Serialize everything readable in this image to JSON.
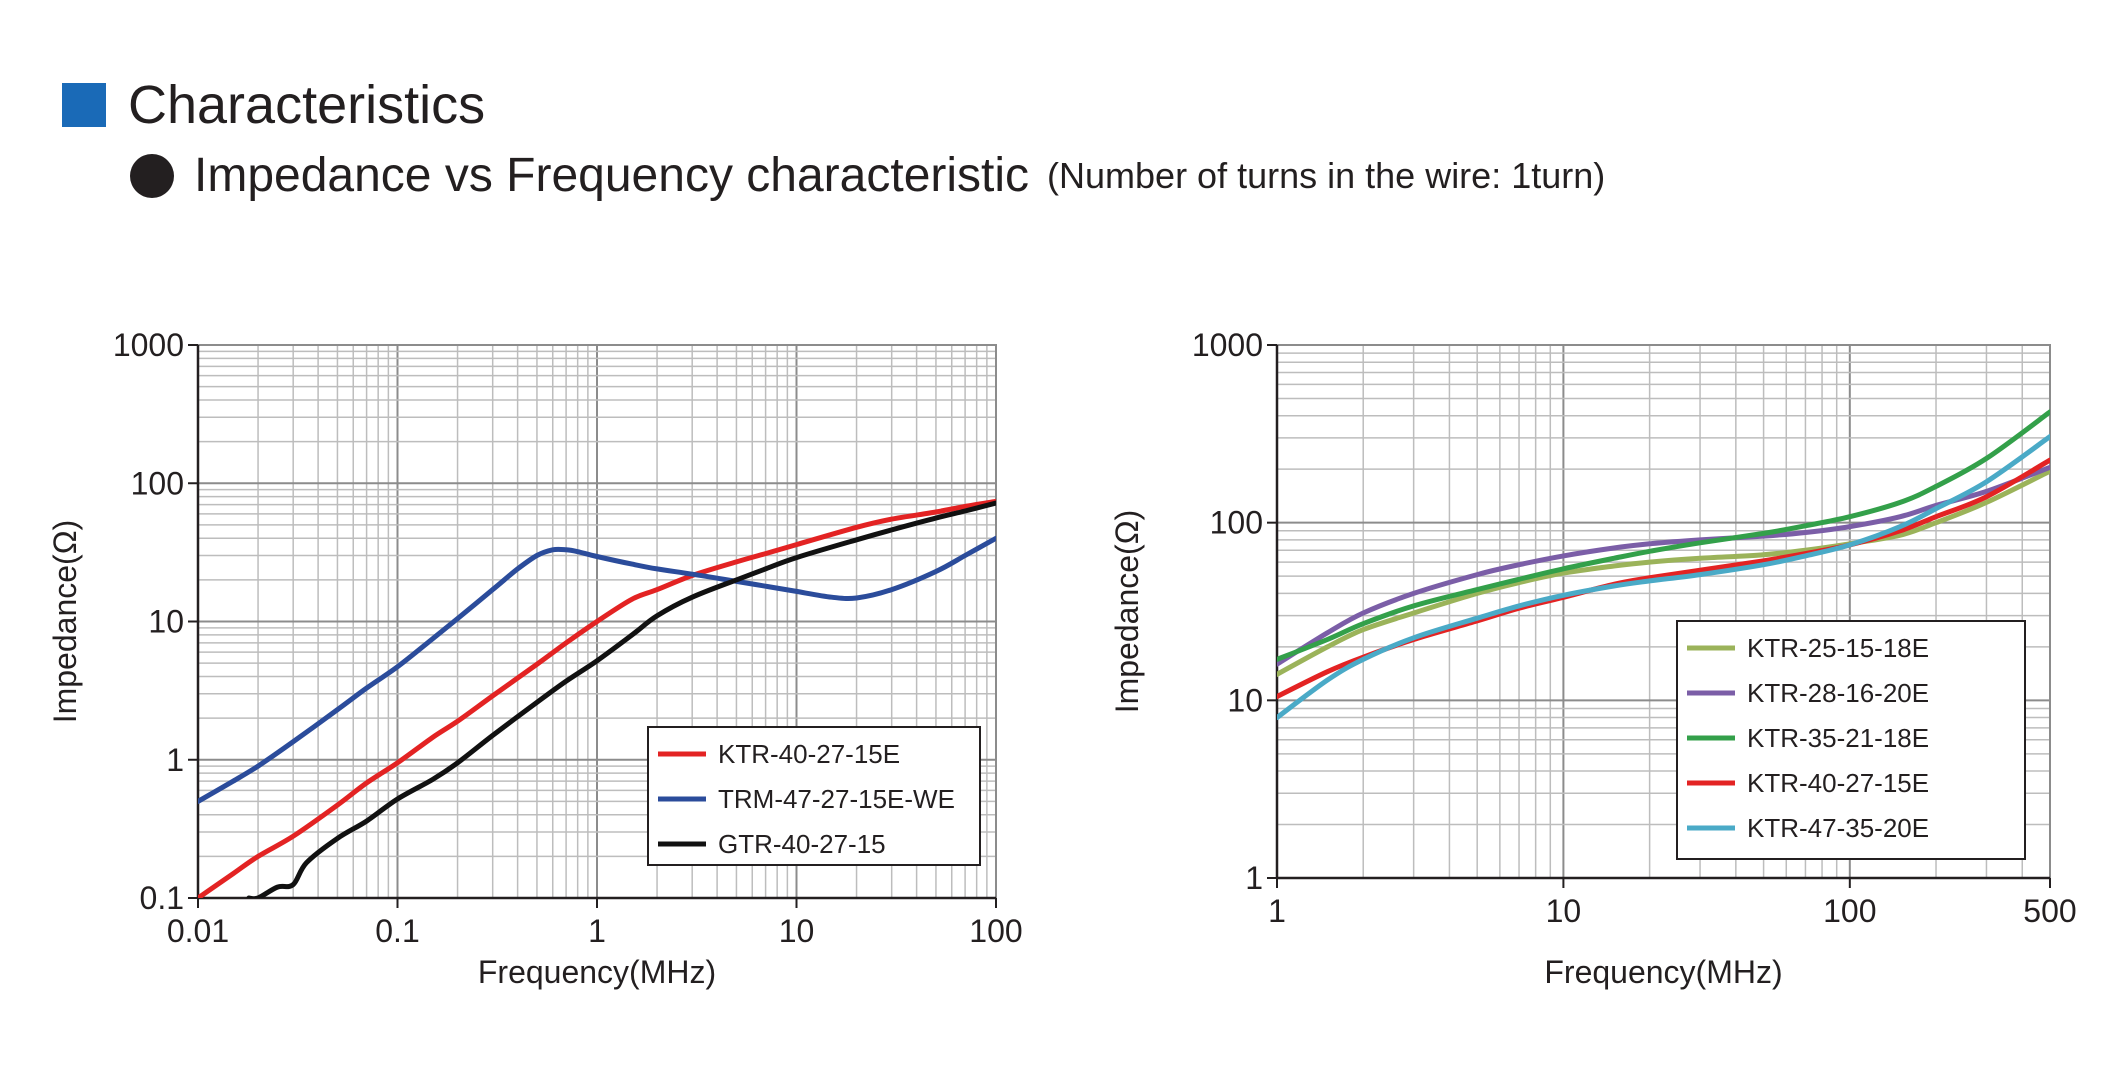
{
  "header": {
    "title": "Characteristics",
    "subtitle": "Impedance vs Frequency characteristic",
    "subtitle_note": "(Number of turns in the wire: 1turn)"
  },
  "colors": {
    "header_square": "#1a6ab7",
    "bullet": "#231f20"
  },
  "chart_data": [
    {
      "type": "line",
      "xlabel": "Frequency(MHz)",
      "ylabel": "Impedance(Ω)",
      "xscale": "log",
      "yscale": "log",
      "xlim": [
        0.01,
        100
      ],
      "ylim": [
        0.1,
        1000
      ],
      "xticks": [
        0.01,
        0.1,
        1,
        10,
        100
      ],
      "xtick_labels": [
        "0.01",
        "0.1",
        "1",
        "10",
        "100"
      ],
      "yticks": [
        0.1,
        1,
        10,
        100,
        1000
      ],
      "ytick_labels": [
        "0.1",
        "1",
        "10",
        "100",
        "1000"
      ],
      "grid": true,
      "legend_position": "lower-right",
      "series": [
        {
          "name": "KTR-40-27-15E",
          "color": "#e32323",
          "x": [
            0.01,
            0.015,
            0.02,
            0.03,
            0.05,
            0.07,
            0.1,
            0.15,
            0.2,
            0.3,
            0.5,
            0.7,
            1,
            1.5,
            2,
            3,
            5,
            7,
            10,
            20,
            30,
            50,
            70,
            100
          ],
          "y": [
            0.1,
            0.15,
            0.2,
            0.28,
            0.47,
            0.68,
            0.95,
            1.45,
            1.9,
            2.9,
            4.9,
            7.0,
            10.0,
            14.5,
            17.0,
            21.5,
            27.0,
            31.0,
            36.0,
            48.0,
            55.0,
            62.0,
            68.0,
            74.0
          ]
        },
        {
          "name": "TRM-47-27-15E-WE",
          "color": "#2b4c9b",
          "x": [
            0.01,
            0.015,
            0.02,
            0.03,
            0.05,
            0.07,
            0.1,
            0.15,
            0.2,
            0.3,
            0.4,
            0.5,
            0.6,
            0.7,
            0.8,
            1,
            1.5,
            2,
            3,
            5,
            7,
            10,
            15,
            20,
            30,
            50,
            70,
            100
          ],
          "y": [
            0.5,
            0.7,
            0.9,
            1.35,
            2.3,
            3.3,
            4.7,
            7.5,
            10.5,
            17.0,
            24.0,
            30.0,
            33.0,
            33.0,
            32.0,
            29.5,
            26.0,
            24.0,
            22.0,
            19.5,
            18.0,
            16.5,
            15.0,
            14.8,
            17.0,
            23.0,
            30.0,
            40.0
          ]
        },
        {
          "name": "GTR-40-27-15",
          "color": "#111111",
          "x": [
            0.018,
            0.02,
            0.025,
            0.03,
            0.035,
            0.05,
            0.07,
            0.1,
            0.15,
            0.2,
            0.3,
            0.5,
            0.7,
            1,
            1.5,
            2,
            3,
            5,
            7,
            10,
            20,
            30,
            50,
            70,
            100
          ],
          "y": [
            0.1,
            0.1,
            0.12,
            0.125,
            0.18,
            0.27,
            0.36,
            0.52,
            0.72,
            0.95,
            1.5,
            2.6,
            3.7,
            5.2,
            8.0,
            11.0,
            15.0,
            20.0,
            24.0,
            29.0,
            39.0,
            46.0,
            56.0,
            63.0,
            72.0
          ]
        }
      ]
    },
    {
      "type": "line",
      "xlabel": "Frequency(MHz)",
      "ylabel": "Impedance(Ω)",
      "xscale": "log",
      "yscale": "log",
      "xlim": [
        1,
        500
      ],
      "ylim": [
        1,
        1000
      ],
      "xticks": [
        1,
        10,
        100,
        500
      ],
      "xtick_labels": [
        "1",
        "10",
        "100",
        "500"
      ],
      "yticks": [
        1,
        10,
        100,
        1000
      ],
      "ytick_labels": [
        "1",
        "10",
        "100",
        "1000"
      ],
      "grid": true,
      "legend_position": "lower-right",
      "series": [
        {
          "name": "KTR-25-15-18E",
          "color": "#9bb35a",
          "x": [
            1,
            1.5,
            2,
            3,
            5,
            7,
            10,
            15,
            20,
            30,
            50,
            70,
            100,
            150,
            200,
            300,
            500
          ],
          "y": [
            14.0,
            20.0,
            25.0,
            31.0,
            40.0,
            46.0,
            52.0,
            57.0,
            60.0,
            63.0,
            66.0,
            70.0,
            76.0,
            85.0,
            100.0,
            130.0,
            195.0
          ]
        },
        {
          "name": "KTR-28-16-20E",
          "color": "#7b5ea7",
          "x": [
            1,
            1.5,
            2,
            3,
            5,
            7,
            10,
            15,
            20,
            30,
            50,
            70,
            100,
            150,
            200,
            300,
            500
          ],
          "y": [
            16.0,
            24.0,
            31.0,
            40.0,
            51.0,
            58.0,
            65.0,
            72.0,
            76.0,
            80.0,
            84.0,
            88.0,
            95.0,
            108.0,
            125.0,
            150.0,
            205.0
          ]
        },
        {
          "name": "KTR-35-21-18E",
          "color": "#33a04a",
          "x": [
            1,
            1.5,
            2,
            3,
            5,
            7,
            10,
            15,
            20,
            30,
            50,
            70,
            100,
            150,
            200,
            300,
            500
          ],
          "y": [
            17.0,
            22.0,
            27.0,
            34.0,
            42.0,
            48.0,
            55.0,
            63.0,
            69.0,
            77.0,
            87.0,
            96.0,
            108.0,
            130.0,
            160.0,
            230.0,
            420.0
          ]
        },
        {
          "name": "KTR-40-27-15E",
          "color": "#e32323",
          "x": [
            1,
            1.5,
            2,
            3,
            5,
            7,
            10,
            15,
            20,
            30,
            50,
            70,
            100,
            150,
            200,
            300,
            500
          ],
          "y": [
            10.5,
            14.5,
            17.5,
            22.0,
            28.0,
            33.0,
            38.0,
            45.0,
            49.0,
            54.0,
            61.0,
            67.0,
            75.0,
            90.0,
            108.0,
            140.0,
            225.0
          ]
        },
        {
          "name": "KTR-47-35-20E",
          "color": "#4aaac7",
          "x": [
            1,
            1.5,
            2,
            3,
            5,
            7,
            10,
            15,
            20,
            30,
            50,
            70,
            100,
            150,
            200,
            300,
            500
          ],
          "y": [
            8.0,
            13.0,
            17.0,
            22.5,
            29.0,
            34.0,
            39.0,
            44.0,
            47.0,
            51.0,
            58.0,
            65.0,
            75.0,
            95.0,
            120.0,
            170.0,
            305.0
          ]
        }
      ]
    }
  ]
}
